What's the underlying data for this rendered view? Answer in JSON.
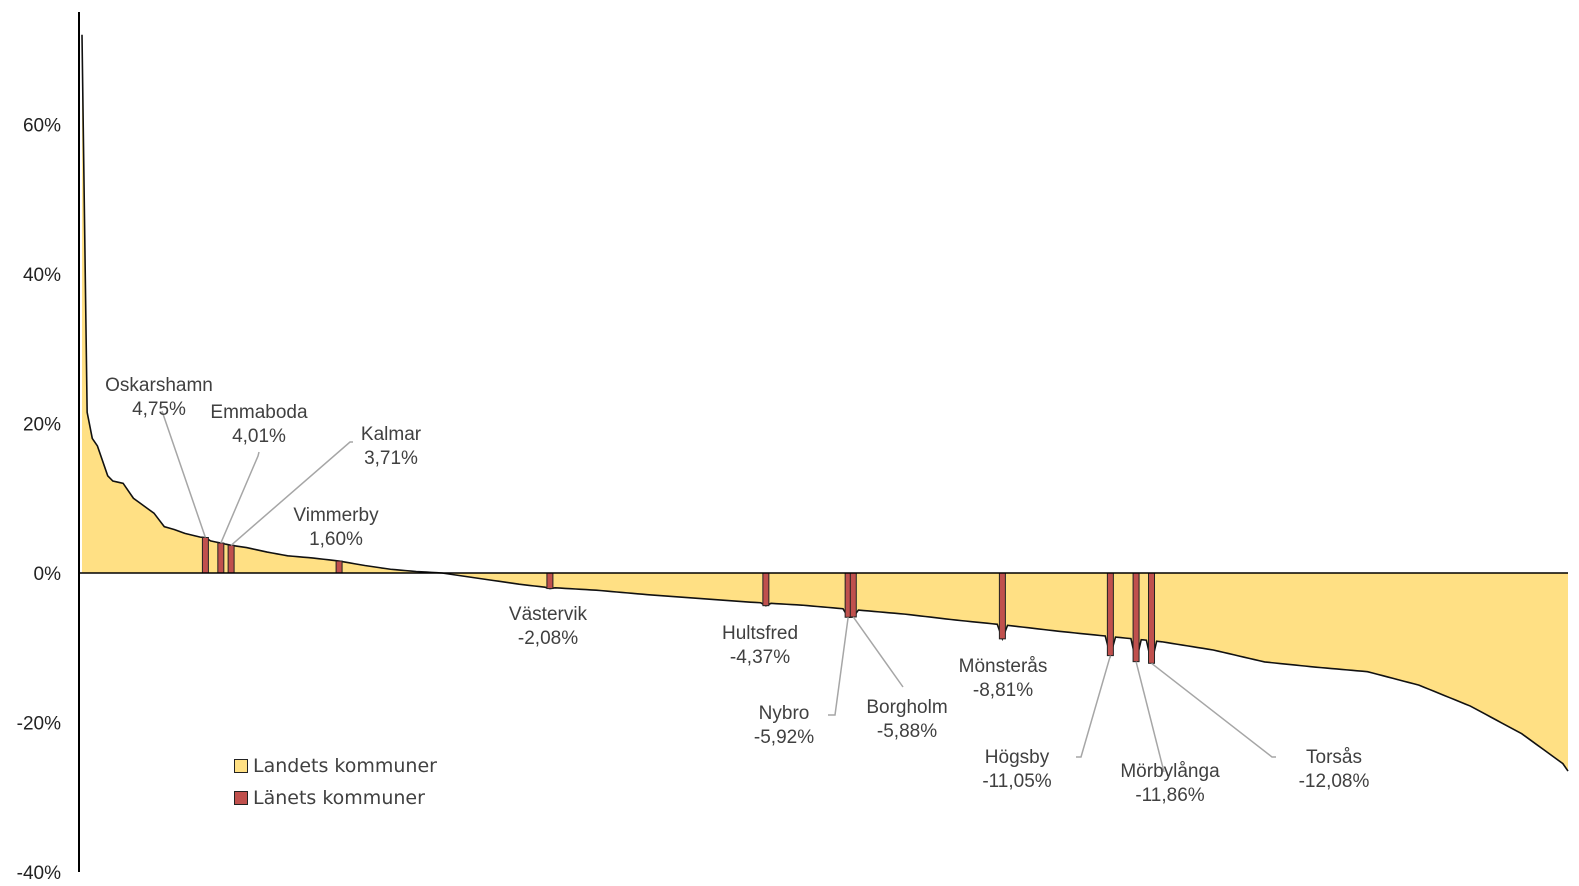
{
  "chart_data": {
    "type": "area",
    "ylim": [
      -40,
      72
    ],
    "y_ticks": [
      {
        "value": 60,
        "label": "60%"
      },
      {
        "value": 40,
        "label": "40%"
      },
      {
        "value": 20,
        "label": "20%"
      },
      {
        "value": 0,
        "label": "0%"
      },
      {
        "value": -20,
        "label": "-20%"
      },
      {
        "value": -40,
        "label": "-40%"
      }
    ],
    "n_points": 290,
    "series": [
      {
        "name": "Landets kommuner",
        "color": "#FFE084",
        "profile": [
          [
            0,
            72
          ],
          [
            1,
            21.5
          ],
          [
            2,
            18
          ],
          [
            3,
            17
          ],
          [
            4,
            15
          ],
          [
            5,
            13
          ],
          [
            6,
            12.3
          ],
          [
            8,
            12
          ],
          [
            10,
            10
          ],
          [
            12,
            9
          ],
          [
            14,
            8
          ],
          [
            16,
            6.2
          ],
          [
            18,
            5.8
          ],
          [
            20,
            5.3
          ],
          [
            23,
            4.8
          ],
          [
            25,
            4.3
          ],
          [
            27,
            4.0
          ],
          [
            29,
            3.7
          ],
          [
            32,
            3.4
          ],
          [
            36,
            2.8
          ],
          [
            40,
            2.3
          ],
          [
            45,
            2.0
          ],
          [
            50,
            1.6
          ],
          [
            55,
            1.0
          ],
          [
            60,
            0.5
          ],
          [
            65,
            0.2
          ],
          [
            70,
            0.0
          ],
          [
            75,
            -0.5
          ],
          [
            80,
            -1.0
          ],
          [
            85,
            -1.5
          ],
          [
            90,
            -1.9
          ],
          [
            95,
            -2.1
          ],
          [
            100,
            -2.3
          ],
          [
            110,
            -2.9
          ],
          [
            120,
            -3.4
          ],
          [
            130,
            -3.9
          ],
          [
            140,
            -4.3
          ],
          [
            150,
            -4.9
          ],
          [
            160,
            -5.5
          ],
          [
            170,
            -6.3
          ],
          [
            180,
            -7.0
          ],
          [
            190,
            -7.8
          ],
          [
            200,
            -8.5
          ],
          [
            210,
            -9.2
          ],
          [
            220,
            -10.3
          ],
          [
            230,
            -11.9
          ],
          [
            240,
            -12.6
          ],
          [
            250,
            -13.2
          ],
          [
            260,
            -15.0
          ],
          [
            270,
            -17.8
          ],
          [
            280,
            -21.5
          ],
          [
            285,
            -24.0
          ],
          [
            288,
            -25.5
          ],
          [
            289,
            -26.5
          ]
        ]
      },
      {
        "name": "Länets kommuner",
        "color": "#C0504D"
      }
    ],
    "highlights": [
      {
        "name": "Oskarshamn",
        "value": 4.75,
        "label": "4,75%",
        "index": 24,
        "anchor": [
          159,
          391
        ]
      },
      {
        "name": "Emmaboda",
        "value": 4.01,
        "label": "4,01%",
        "index": 27,
        "anchor": [
          259,
          418
        ]
      },
      {
        "name": "Kalmar",
        "value": 3.71,
        "label": "3,71%",
        "index": 29,
        "anchor": [
          391,
          440
        ]
      },
      {
        "name": "Vimmerby",
        "value": 1.6,
        "label": "1,60%",
        "index": 50,
        "anchor": [
          336,
          521
        ]
      },
      {
        "name": "Västervik",
        "value": -2.08,
        "label": "-2,08%",
        "index": 91,
        "anchor": [
          548,
          620
        ]
      },
      {
        "name": "Hultsfred",
        "value": -4.37,
        "label": "-4,37%",
        "index": 133,
        "anchor": [
          760,
          639
        ]
      },
      {
        "name": "Nybro",
        "value": -5.92,
        "label": "-5,92%",
        "index": 149,
        "anchor": [
          784,
          719
        ]
      },
      {
        "name": "Borgholm",
        "value": -5.88,
        "label": "-5,88%",
        "index": 150,
        "anchor": [
          907,
          713
        ]
      },
      {
        "name": "Mönsterås",
        "value": -8.81,
        "label": "-8,81%",
        "index": 179,
        "anchor": [
          1003,
          672
        ]
      },
      {
        "name": "Högsby",
        "value": -11.05,
        "label": "-11,05%",
        "index": 200,
        "anchor": [
          1017,
          763
        ]
      },
      {
        "name": "Mörbylånga",
        "value": -11.86,
        "label": "-11,86%",
        "index": 205,
        "anchor": [
          1170,
          777
        ]
      },
      {
        "name": "Torsås",
        "value": -12.08,
        "label": "-12,08%",
        "index": 208,
        "anchor": [
          1334,
          763
        ]
      }
    ]
  },
  "legend": {
    "items": [
      {
        "label": "Landets kommuner",
        "color": "#FFE084"
      },
      {
        "label": "Länets kommuner",
        "color": "#C0504D"
      }
    ]
  }
}
